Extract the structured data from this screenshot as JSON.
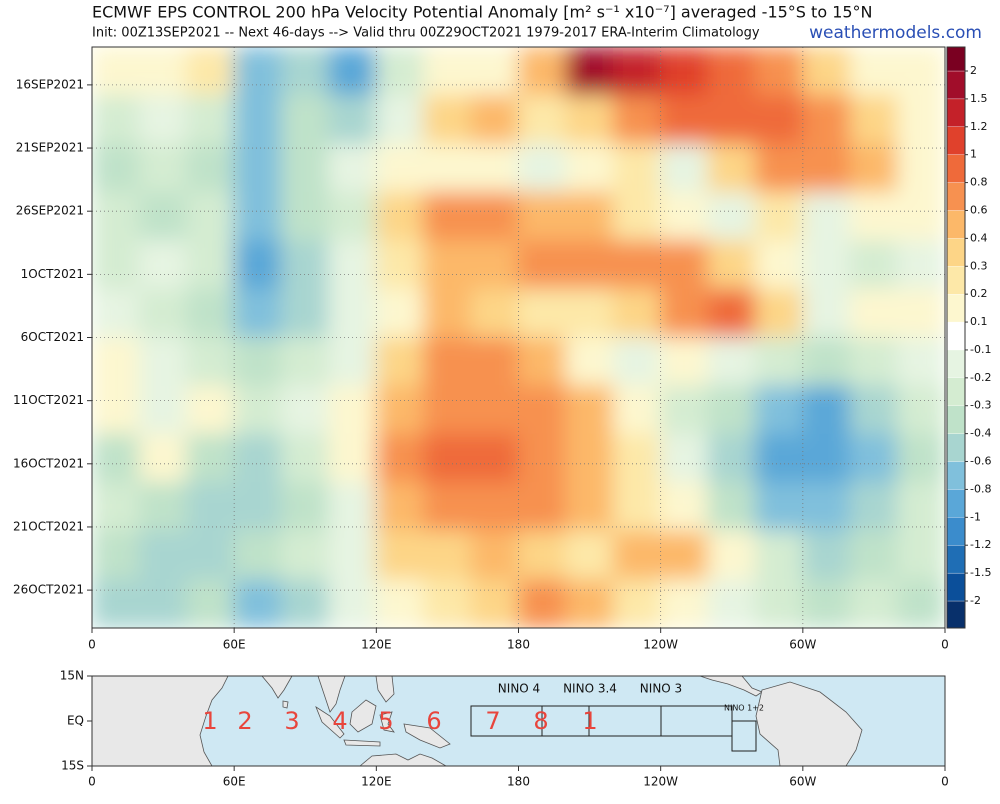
{
  "chart_data": {
    "type": "heatmap",
    "title": "ECMWF EPS CONTROL 200 hPa Velocity Potential Anomaly [m² s⁻¹ x10⁻⁷] averaged -15°S to 15°N",
    "subtitle": "Init: 00Z13SEP2021 -- Next 46-days --> Valid thru 00Z29OCT2021 1979-2017 ERA-Interim Climatology",
    "credit": "weathermodels.com",
    "xlim": [
      0,
      360
    ],
    "xticks": [
      0,
      {
        "value": 60,
        "label": "60E"
      },
      {
        "value": 120,
        "label": "120E"
      },
      180,
      {
        "value": 240,
        "label": "120W"
      },
      {
        "value": 300,
        "label": "60W"
      },
      {
        "value": 360,
        "label": "0"
      }
    ],
    "ylim": [
      0,
      46
    ],
    "yticks": [
      {
        "value": 3,
        "label": "16SEP2021"
      },
      {
        "value": 8,
        "label": "21SEP2021"
      },
      {
        "value": 13,
        "label": "26SEP2021"
      },
      {
        "value": 18,
        "label": "1OCT2021"
      },
      {
        "value": 23,
        "label": "6OCT2021"
      },
      {
        "value": 28,
        "label": "11OCT2021"
      },
      {
        "value": 33,
        "label": "16OCT2021"
      },
      {
        "value": 38,
        "label": "21OCT2021"
      },
      {
        "value": 43,
        "label": "26OCT2021"
      }
    ],
    "grid": true,
    "x": [
      10,
      30,
      50,
      70,
      90,
      110,
      130,
      150,
      170,
      190,
      210,
      230,
      250,
      270,
      290,
      310,
      330,
      350
    ],
    "values": [
      [
        0.1,
        0.1,
        0.2,
        -0.6,
        -0.4,
        -0.8,
        -0.2,
        0.1,
        0.1,
        0.4,
        1.5,
        1.2,
        1.0,
        0.8,
        0.6,
        0.3,
        0.1,
        0.1
      ],
      [
        -0.2,
        -0.1,
        -0.2,
        -0.6,
        -0.3,
        -0.4,
        -0.1,
        0.3,
        0.4,
        0.2,
        0.3,
        0.6,
        0.8,
        0.8,
        0.8,
        0.6,
        0.3,
        0.1
      ],
      [
        -0.3,
        -0.2,
        -0.3,
        -0.6,
        -0.3,
        -0.1,
        0.1,
        0.1,
        0.1,
        -0.1,
        0.1,
        0.2,
        -0.1,
        0.3,
        0.6,
        0.6,
        0.4,
        0.1
      ],
      [
        -0.2,
        -0.3,
        -0.2,
        -0.6,
        -0.3,
        -0.2,
        0.3,
        0.6,
        0.6,
        0.4,
        0.4,
        0.2,
        0.1,
        -0.1,
        0.2,
        -0.1,
        0.1,
        0.1
      ],
      [
        -0.2,
        -0.1,
        -0.2,
        -0.8,
        -0.4,
        -0.1,
        0.2,
        0.4,
        0.4,
        0.6,
        0.6,
        0.6,
        0.6,
        0.3,
        0.1,
        -0.1,
        -0.2,
        -0.1
      ],
      [
        -0.1,
        -0.2,
        -0.3,
        -0.6,
        -0.4,
        -0.1,
        0.1,
        0.4,
        0.3,
        0.2,
        0.2,
        0.3,
        0.6,
        0.8,
        0.3,
        -0.1,
        0.1,
        0.1
      ],
      [
        0.1,
        -0.1,
        -0.2,
        -0.3,
        -0.2,
        -0.1,
        0.3,
        0.6,
        0.6,
        0.4,
        0.1,
        -0.1,
        0.1,
        -0.1,
        -0.2,
        -0.3,
        -0.2,
        -0.1
      ],
      [
        0.1,
        -0.1,
        0.1,
        -0.2,
        -0.1,
        0.1,
        0.4,
        0.6,
        0.6,
        0.6,
        0.4,
        0.1,
        -0.2,
        -0.3,
        -0.6,
        -0.8,
        -0.4,
        -0.2
      ],
      [
        -0.3,
        0.1,
        -0.3,
        -0.4,
        -0.2,
        0.1,
        0.6,
        0.8,
        0.8,
        0.6,
        0.4,
        0.2,
        -0.1,
        -0.4,
        -0.8,
        -0.8,
        -0.6,
        -0.3
      ],
      [
        -0.2,
        -0.3,
        -0.4,
        -0.4,
        -0.3,
        -0.1,
        0.4,
        0.6,
        0.6,
        0.6,
        0.4,
        0.2,
        0.1,
        -0.3,
        -0.6,
        -0.6,
        -0.4,
        -0.2
      ],
      [
        -0.3,
        -0.4,
        -0.4,
        -0.3,
        -0.2,
        -0.1,
        0.3,
        0.3,
        0.4,
        0.3,
        0.2,
        0.4,
        0.4,
        0.1,
        -0.2,
        -0.4,
        -0.3,
        -0.2
      ],
      [
        -0.4,
        -0.4,
        -0.3,
        -0.6,
        -0.4,
        -0.1,
        0.1,
        0.2,
        0.3,
        0.6,
        0.4,
        0.2,
        0.1,
        -0.1,
        -0.2,
        -0.3,
        -0.2,
        -0.3
      ]
    ],
    "colorbar": {
      "levels": [
        -2,
        -1.5,
        -1.2,
        -1,
        -0.8,
        -0.6,
        -0.4,
        -0.3,
        -0.2,
        -0.1,
        0.1,
        0.2,
        0.3,
        0.4,
        0.6,
        0.8,
        1,
        1.2,
        1.5,
        2
      ],
      "colors": [
        "#08306b",
        "#0b4f9a",
        "#1f6eb5",
        "#3b8ccc",
        "#5aa7d8",
        "#80c0dc",
        "#a8d5d0",
        "#bfe2c9",
        "#d4ecd1",
        "#e6f4e2",
        "#ffffff",
        "#fdf7cf",
        "#fde8a8",
        "#fdd587",
        "#fcb869",
        "#f79150",
        "#ef6a3a",
        "#e0412c",
        "#c42129",
        "#a10d2a",
        "#7a0021"
      ]
    },
    "map": {
      "yticks": [
        {
          "value": 15,
          "label": "15N"
        },
        {
          "value": 0,
          "label": "EQ"
        },
        {
          "value": -15,
          "label": "15S"
        }
      ],
      "regions": [
        "NINO 4",
        "NINO 3.4",
        "NINO 3",
        "NINO 1+2"
      ],
      "phases": [
        "1",
        "2",
        "3",
        "4",
        "5",
        "6",
        "7",
        "8",
        "1"
      ]
    }
  }
}
